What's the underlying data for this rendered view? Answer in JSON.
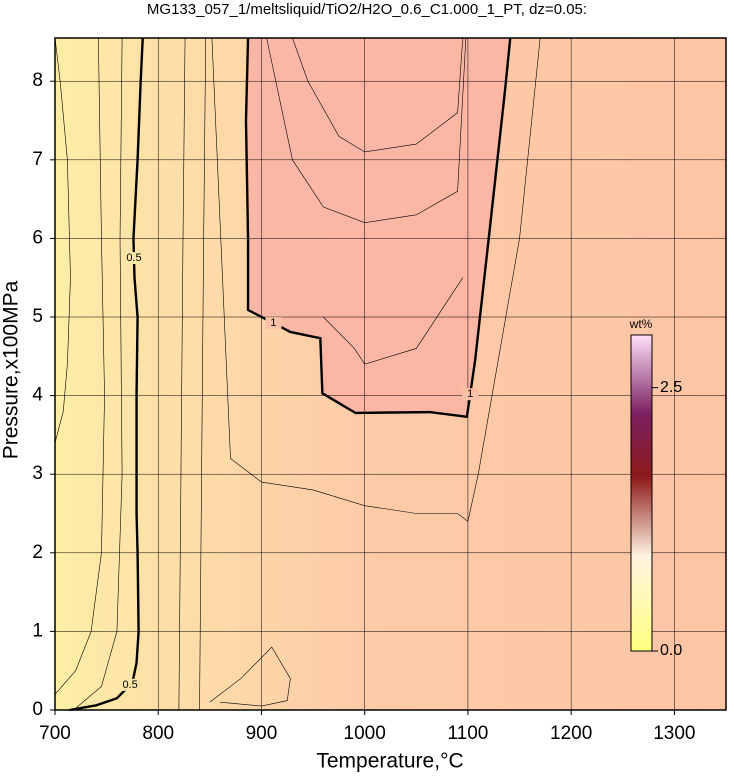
{
  "chart_data": {
    "type": "contour",
    "title": "MG133_057_1/meltsliquid/TiO2/H2O_0.6_C1.000_1_PT, dz=0.05:",
    "x_label": "Temperature,°C",
    "y_label": "Pressure,x100MPa",
    "xlim": [
      700,
      1350
    ],
    "xticks": [
      700,
      800,
      900,
      1000,
      1100,
      1200,
      1300
    ],
    "ylim": [
      0,
      8.55
    ],
    "yticks": [
      0,
      1,
      2,
      3,
      4,
      5,
      6,
      7,
      8
    ],
    "grid": true,
    "contours": [
      {
        "label": "0.5",
        "x": [
          714,
          740,
          760,
          775,
          779,
          781,
          780,
          779,
          779,
          779,
          780,
          777,
          776,
          780,
          783,
          785
        ],
        "y": [
          0,
          0.06,
          0.15,
          0.35,
          0.6,
          1,
          2,
          2.5,
          3,
          4,
          5,
          5.5,
          6,
          7,
          8,
          8.55
        ]
      },
      {
        "label": "1",
        "x": [
          887,
          885,
          887,
          887,
          928,
          957,
          959,
          991,
          1063,
          1099,
          1107,
          1121,
          1136,
          1141
        ],
        "y": [
          8.55,
          7.5,
          6,
          5.09,
          4.81,
          4.73,
          4.03,
          3.78,
          3.79,
          3.73,
          4.45,
          6.1,
          7.89,
          8.55
        ]
      },
      {
        "x": [
          930,
          945,
          975,
          1000,
          1050,
          1090,
          1095
        ],
        "y": [
          8.55,
          8.0,
          7.3,
          7.1,
          7.2,
          7.6,
          8.55
        ]
      },
      {
        "x": [
          905,
          930,
          960,
          1000,
          1050,
          1090,
          1098
        ],
        "y": [
          8.55,
          7.0,
          6.4,
          6.2,
          6.3,
          6.6,
          8.55
        ]
      },
      {
        "x": [
          960,
          990,
          1000,
          1050,
          1095
        ],
        "y": [
          5.0,
          4.6,
          4.4,
          4.6,
          5.5
        ]
      },
      {
        "x": [
          852,
          870,
          900,
          950,
          1000,
          1050,
          1090,
          1100,
          1110,
          1150,
          1170
        ],
        "y": [
          8.55,
          3.2,
          2.9,
          2.8,
          2.6,
          2.5,
          2.5,
          2.4,
          3.0,
          6.0,
          8.55
        ]
      },
      {
        "x": [
          850,
          880,
          910,
          928,
          925,
          900,
          860
        ],
        "y": [
          0.1,
          0.4,
          0.8,
          0.4,
          0.12,
          0.05,
          0.1
        ]
      },
      {
        "x": [
          700,
          708,
          712,
          715,
          712,
          705,
          700
        ],
        "y": [
          3.4,
          3.8,
          4.4,
          5.5,
          7,
          8,
          8.55
        ]
      },
      {
        "x": [
          700,
          720,
          735,
          745,
          748,
          745,
          742
        ],
        "y": [
          0.2,
          0.5,
          1.0,
          2.0,
          4.0,
          6.0,
          8.55
        ]
      },
      {
        "x": [
          718,
          745,
          760,
          765,
          763,
          765
        ],
        "y": [
          0,
          0.3,
          1.0,
          3.0,
          6.0,
          8.55
        ]
      },
      {
        "x": [
          820,
          822,
          824,
          826
        ],
        "y": [
          0,
          3.0,
          6.0,
          8.55
        ]
      },
      {
        "x": [
          840,
          842,
          844,
          846
        ],
        "y": [
          0,
          3.0,
          6.0,
          8.55
        ]
      }
    ],
    "colorbar": {
      "title": "wt%",
      "lim": [
        0,
        3.0
      ],
      "ticks": [
        {
          "value": 0,
          "label": "0.0"
        },
        {
          "value": 2.5,
          "label": "2.5"
        }
      ]
    }
  }
}
